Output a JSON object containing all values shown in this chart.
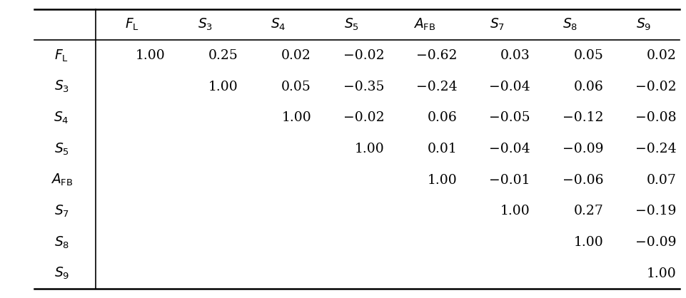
{
  "row_labels": [
    "$F_{\\mathrm{L}}$",
    "$S_3$",
    "$S_4$",
    "$S_5$",
    "$A_{\\mathrm{FB}}$",
    "$S_7$",
    "$S_8$",
    "$S_9$"
  ],
  "col_labels": [
    "$F_{\\mathrm{L}}$",
    "$S_3$",
    "$S_4$",
    "$S_5$",
    "$A_{\\mathrm{FB}}$",
    "$S_7$",
    "$S_8$",
    "$S_9$"
  ],
  "matrix": [
    [
      "1.00",
      "0.25",
      "0.02",
      "−0.02",
      "−0.62",
      "0.03",
      "0.05",
      "0.02"
    ],
    [
      "",
      "1.00",
      "0.05",
      "−0.35",
      "−0.24",
      "−0.04",
      "0.06",
      "−0.02"
    ],
    [
      "",
      "",
      "1.00",
      "−0.02",
      "0.06",
      "−0.05",
      "−0.12",
      "−0.08"
    ],
    [
      "",
      "",
      "",
      "1.00",
      "0.01",
      "−0.04",
      "−0.09",
      "−0.24"
    ],
    [
      "",
      "",
      "",
      "",
      "1.00",
      "−0.01",
      "−0.06",
      "0.07"
    ],
    [
      "",
      "",
      "",
      "",
      "",
      "1.00",
      "0.27",
      "−0.19"
    ],
    [
      "",
      "",
      "",
      "",
      "",
      "",
      "1.00",
      "−0.09"
    ],
    [
      "",
      "",
      "",
      "",
      "",
      "",
      "",
      "1.00"
    ]
  ],
  "figsize": [
    9.62,
    4.18
  ],
  "dpi": 100,
  "background_color": "#ffffff",
  "line_color": "#000000",
  "text_color": "#000000",
  "font_size": 13.5
}
